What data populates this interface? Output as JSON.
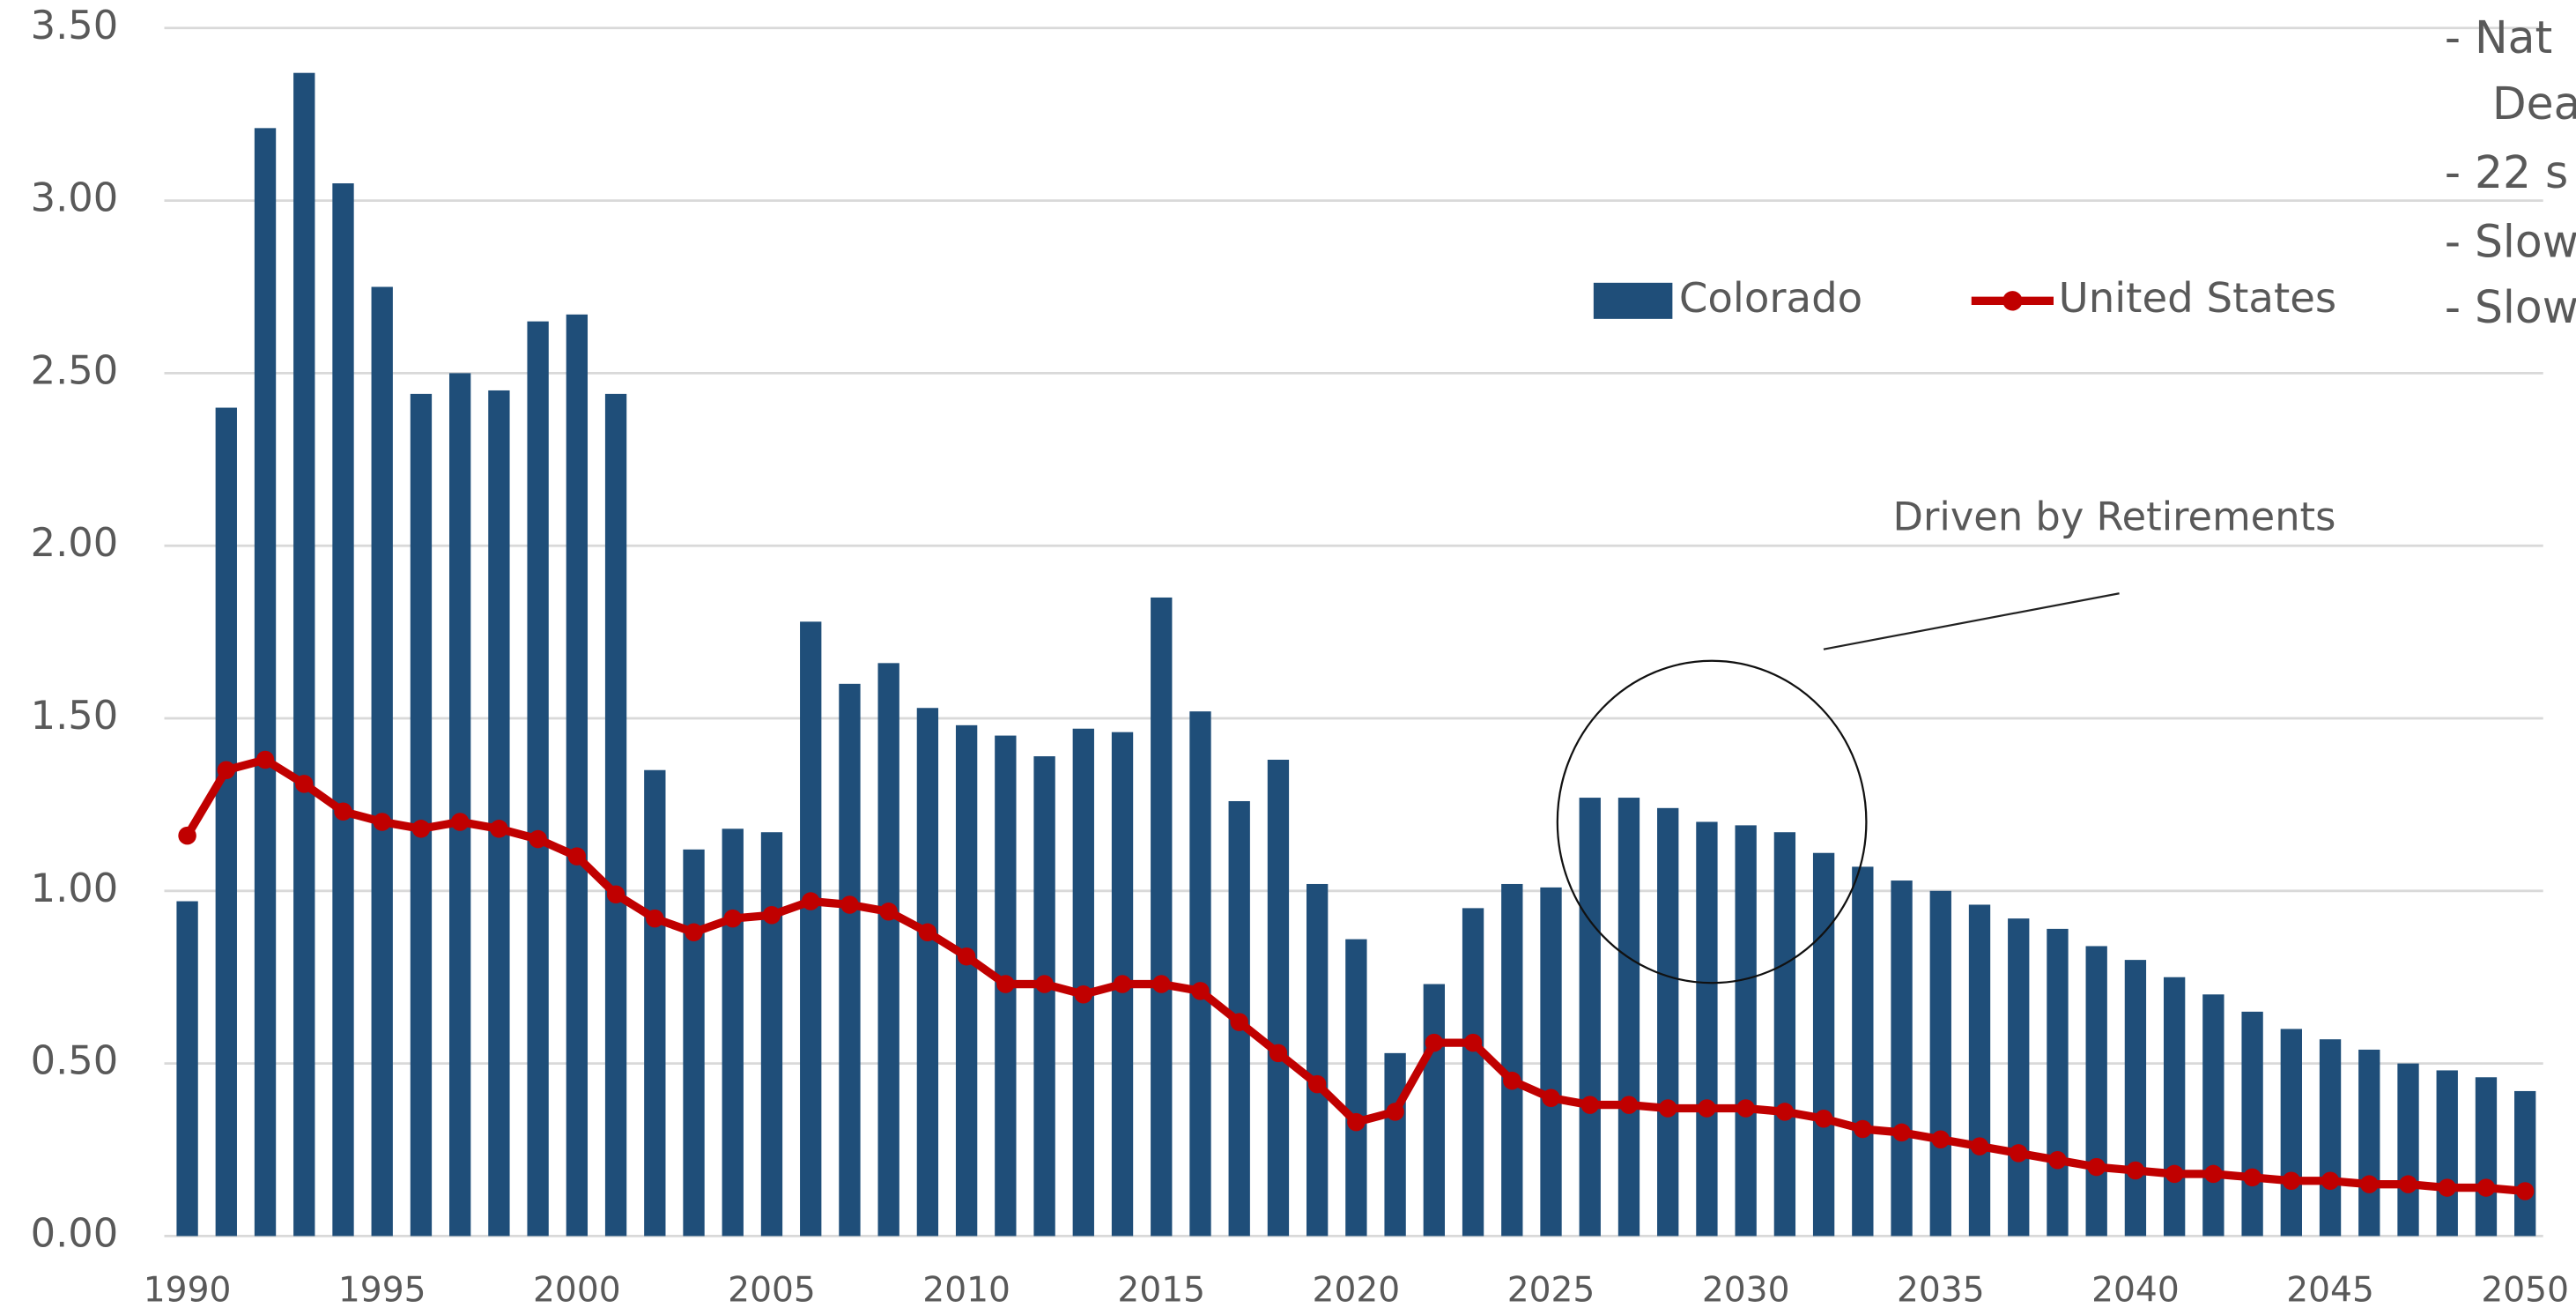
{
  "chart_data": {
    "type": "bar-line",
    "x": [
      1990,
      1991,
      1992,
      1993,
      1994,
      1995,
      1996,
      1997,
      1998,
      1999,
      2000,
      2001,
      2002,
      2003,
      2004,
      2005,
      2006,
      2007,
      2008,
      2009,
      2010,
      2011,
      2012,
      2013,
      2014,
      2015,
      2016,
      2017,
      2018,
      2019,
      2020,
      2021,
      2022,
      2023,
      2024,
      2025,
      2026,
      2027,
      2028,
      2029,
      2030,
      2031,
      2032,
      2033,
      2034,
      2035,
      2036,
      2037,
      2038,
      2039,
      2040,
      2041,
      2042,
      2043,
      2044,
      2045,
      2046,
      2047,
      2048,
      2049,
      2050
    ],
    "series": [
      {
        "name": "Colorado",
        "kind": "bar",
        "color": "#1f4e79",
        "values": [
          0.97,
          2.4,
          3.21,
          3.37,
          3.05,
          2.75,
          2.44,
          2.5,
          2.45,
          2.65,
          2.67,
          2.44,
          1.35,
          1.12,
          1.18,
          1.17,
          1.78,
          1.6,
          1.66,
          1.53,
          1.48,
          1.45,
          1.39,
          1.47,
          1.46,
          1.85,
          1.52,
          1.26,
          1.38,
          1.02,
          0.86,
          0.53,
          0.73,
          0.95,
          1.02,
          1.01,
          1.27,
          1.27,
          1.24,
          1.2,
          1.19,
          1.17,
          1.11,
          1.07,
          1.03,
          1.0,
          0.96,
          0.92,
          0.89,
          0.84,
          0.8,
          0.75,
          0.7,
          0.65,
          0.6,
          0.57,
          0.54,
          0.5,
          0.48,
          0.46,
          0.42
        ]
      },
      {
        "name": "United States",
        "kind": "line",
        "color": "#c00000",
        "values": [
          1.16,
          1.35,
          1.38,
          1.31,
          1.23,
          1.2,
          1.18,
          1.2,
          1.18,
          1.15,
          1.1,
          0.99,
          0.92,
          0.88,
          0.92,
          0.93,
          0.97,
          0.96,
          0.94,
          0.88,
          0.81,
          0.73,
          0.73,
          0.7,
          0.73,
          0.73,
          0.71,
          0.62,
          0.53,
          0.44,
          0.33,
          0.36,
          0.56,
          0.56,
          0.45,
          0.4,
          0.38,
          0.38,
          0.37,
          0.37,
          0.37,
          0.36,
          0.34,
          0.31,
          0.3,
          0.28,
          0.26,
          0.24,
          0.22,
          0.2,
          0.19,
          0.18,
          0.18,
          0.17,
          0.16,
          0.16,
          0.15,
          0.15,
          0.14,
          0.14,
          0.13
        ]
      }
    ],
    "xlim": [
      1990,
      2050
    ],
    "xticks": [
      1990,
      1995,
      2000,
      2005,
      2010,
      2015,
      2020,
      2025,
      2030,
      2035,
      2040,
      2045,
      2050
    ],
    "ylim": [
      0,
      3.5
    ],
    "yticks": [
      {
        "value": 0,
        "label": "0.00"
      },
      {
        "value": 0.5,
        "label": "0.50"
      },
      {
        "value": 1,
        "label": "1.00"
      },
      {
        "value": 1.5,
        "label": "1.50"
      },
      {
        "value": 2,
        "label": "2.00"
      },
      {
        "value": 2.5,
        "label": "2.50"
      },
      {
        "value": 3,
        "label": "3.00"
      },
      {
        "value": 3.5,
        "label": "3.50"
      }
    ],
    "grid": true,
    "legend": "top-right",
    "annotations": [
      "Driven by Retirements"
    ],
    "side_notes": [
      "- Nat",
      "Dea",
      "- 22 s",
      "- Slow",
      "- Slow"
    ]
  }
}
